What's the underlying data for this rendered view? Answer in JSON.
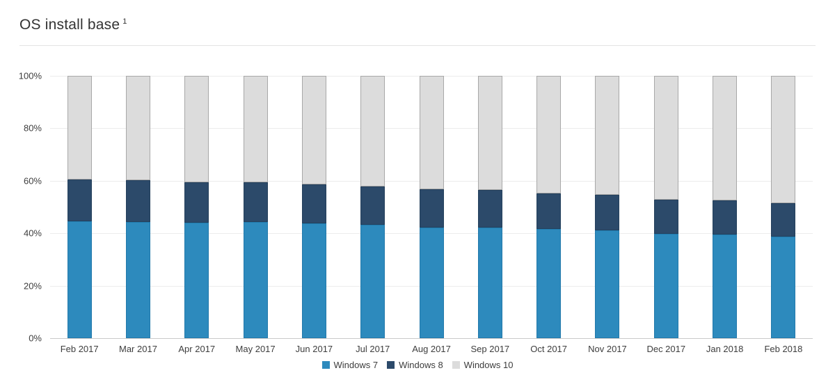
{
  "header": {
    "title": "OS install base",
    "footnote_marker": "1"
  },
  "chart_data": {
    "type": "bar",
    "stacked": true,
    "title": "OS install base",
    "xlabel": "",
    "ylabel": "",
    "ylim": [
      0,
      100
    ],
    "grid": true,
    "legend_position": "bottom",
    "y_ticks": [
      "100%",
      "80%",
      "60%",
      "40%",
      "20%",
      "0%"
    ],
    "categories": [
      "Feb 2017",
      "Mar 2017",
      "Apr 2017",
      "May 2017",
      "Jun 2017",
      "Jul 2017",
      "Aug 2017",
      "Sep 2017",
      "Oct 2017",
      "Nov 2017",
      "Dec 2017",
      "Jan 2018",
      "Feb 2018"
    ],
    "series": [
      {
        "name": "Windows 7",
        "color": "#2d8abd",
        "border_color": "#2279ab",
        "values": [
          44.5,
          44.4,
          44.0,
          44.4,
          43.8,
          43.3,
          42.3,
          42.2,
          41.6,
          41.1,
          39.9,
          39.6,
          38.8
        ]
      },
      {
        "name": "Windows 8",
        "color": "#2c4a6a",
        "border_color": "#24405c",
        "values": [
          16.0,
          15.8,
          15.4,
          15.0,
          14.8,
          14.6,
          14.6,
          14.2,
          13.7,
          13.6,
          12.9,
          12.9,
          12.7
        ]
      },
      {
        "name": "Windows 10",
        "color": "#dcdcdc",
        "border_color": "#a8a8a8",
        "values": [
          39.5,
          39.8,
          40.6,
          40.6,
          41.4,
          42.1,
          43.1,
          43.6,
          44.7,
          45.3,
          47.2,
          47.5,
          48.5
        ]
      }
    ]
  }
}
